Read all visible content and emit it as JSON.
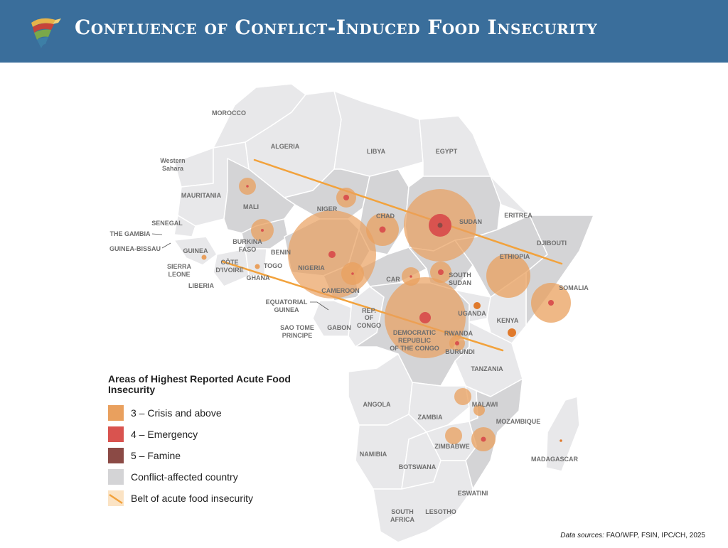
{
  "header": {
    "title": "Confluence of Conflict-Induced Food Insecurity"
  },
  "colors": {
    "banner": "#3a6e9b",
    "crisis": "#e9a05e",
    "emergency": "#d9534f",
    "famine": "#8b4a45",
    "conflict_country": "#d4d4d6",
    "other_country": "#e8e8ea",
    "belt": "#f2a23c"
  },
  "legend": {
    "title": "Areas of Highest Reported Acute Food Insecurity",
    "items": [
      {
        "label": "3 – Crisis and above",
        "color": "#e9a05e"
      },
      {
        "label": "4 – Emergency",
        "color": "#d9534f"
      },
      {
        "label": "5 – Famine",
        "color": "#8b4a45"
      },
      {
        "label": "Conflict-affected country",
        "color": "#d4d4d6"
      },
      {
        "label": "Belt of acute food insecurity",
        "color": "#f2a23c"
      }
    ]
  },
  "labels": {
    "morocco": "MOROCCO",
    "algeria": "ALGERIA",
    "libya": "LIBYA",
    "egypt": "EGYPT",
    "western_sahara_1": "Western",
    "western_sahara_2": "Sahara",
    "mauritania": "MAURITANIA",
    "mali": "MALI",
    "niger": "NIGER",
    "chad": "CHAD",
    "sudan": "SUDAN",
    "eritrea": "ERITREA",
    "djibouti": "DJIBOUTI",
    "senegal": "SENEGAL",
    "the_gambia": "THE GAMBIA",
    "guinea_bissau": "GUINEA-BISSAU",
    "guinea": "GUINEA",
    "burkina_1": "BURKINA",
    "burkina_2": "FASO",
    "benin": "BENIN",
    "togo": "TOGO",
    "nigeria": "NIGERIA",
    "ethiopia": "ETHIOPIA",
    "sierra_1": "SIERRA",
    "sierra_2": "LEONE",
    "cote_1": "CÔTE",
    "cote_2": "D'IVOIRE",
    "ghana": "GHANA",
    "liberia": "LIBERIA",
    "car": "CAR",
    "south_sudan_1": "SOUTH",
    "south_sudan_2": "SUDAN",
    "somalia": "SOMALIA",
    "cameroon": "CAMEROON",
    "eq_guinea_1": "EQUATORIAL",
    "eq_guinea_2": "GUINEA",
    "rep_congo_1": "REP.",
    "rep_congo_2": "OF",
    "rep_congo_3": "CONGO",
    "uganda": "UGANDA",
    "kenya": "KENYA",
    "sao_tome_1": "SAO TOME",
    "sao_tome_2": "PRINCIPE",
    "gabon": "GABON",
    "drc_1": "DEMOCRATIC",
    "drc_2": "REPUBLIC",
    "drc_3": "OF THE CONGO",
    "rwanda": "RWANDA",
    "burundi": "BURUNDI",
    "tanzania": "TANZANIA",
    "angola": "ANGOLA",
    "malawi": "MALAWI",
    "zambia": "ZAMBIA",
    "mozambique": "MOZAMBIQUE",
    "zimbabwe": "ZIMBABWE",
    "namibia": "NAMIBIA",
    "madagascar": "MADAGASCAR",
    "botswana": "BOTSWANA",
    "eswatini": "ESWATINI",
    "south_africa_1": "SOUTH",
    "south_africa_2": "AFRICA",
    "lesotho": "LESOTHO"
  },
  "source": {
    "prefix": "Data sources:",
    "text": " FAO/WFP, FSIN, IPC/CH, 2025"
  }
}
